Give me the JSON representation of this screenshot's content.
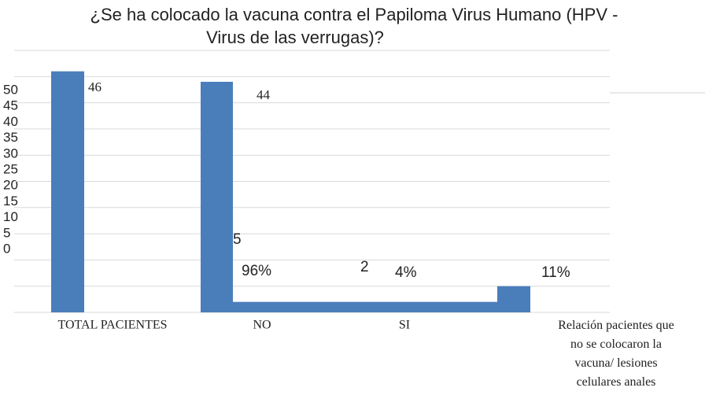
{
  "chart_data": {
    "type": "bar",
    "title": "¿Se ha colocado la vacuna contra el Papiloma Virus Humano (HPV -",
    "subtitle": "Virus de las verrugas)?",
    "categories": [
      "TOTAL PACIENTES",
      "NO",
      "SI",
      "Relación pacientes  que no se colocaron la vacuna/ lesiones celulares anales"
    ],
    "values": [
      46,
      44,
      2,
      5
    ],
    "color": "#4a7ebb",
    "ylim": [
      0,
      50
    ],
    "yticks": [
      0,
      5,
      10,
      15,
      20,
      25,
      30,
      35,
      40,
      45,
      50
    ],
    "grid": true,
    "annotations": [
      "5",
      "96%",
      "4%",
      "11%"
    ]
  }
}
